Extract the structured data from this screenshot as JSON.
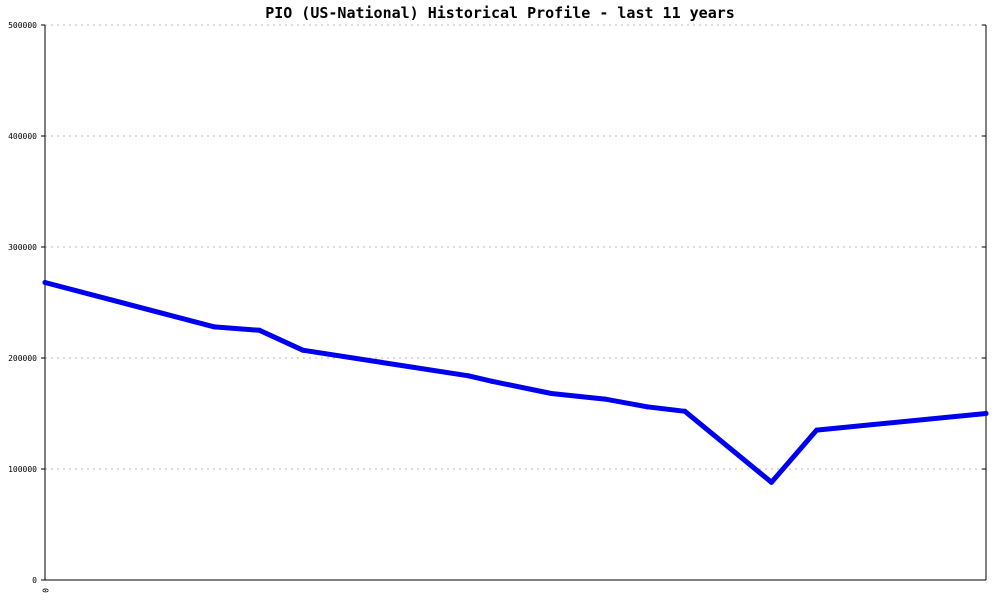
{
  "chart_data": {
    "type": "line",
    "title": "PIO (US-National) Historical Profile - last 11 years",
    "xlabel": "",
    "ylabel": "",
    "ylim": [
      0,
      500000
    ],
    "y_ticks": [
      0,
      100000,
      200000,
      300000,
      400000,
      500000
    ],
    "y_tick_labels": [
      "0",
      "100000",
      "200000",
      "300000",
      "400000",
      "500000"
    ],
    "x_tick_labels": [
      "0"
    ],
    "grid": true,
    "line_color": "#0000ee",
    "series": [
      {
        "x": [
          0,
          0.18,
          0.228,
          0.274,
          0.45,
          0.475,
          0.538,
          0.595,
          0.64,
          0.68,
          0.772,
          0.82,
          1.0
        ],
        "values": [
          268000,
          228000,
          225000,
          207000,
          184000,
          179000,
          168000,
          163000,
          156000,
          152000,
          88000,
          135000,
          150000
        ]
      }
    ]
  }
}
